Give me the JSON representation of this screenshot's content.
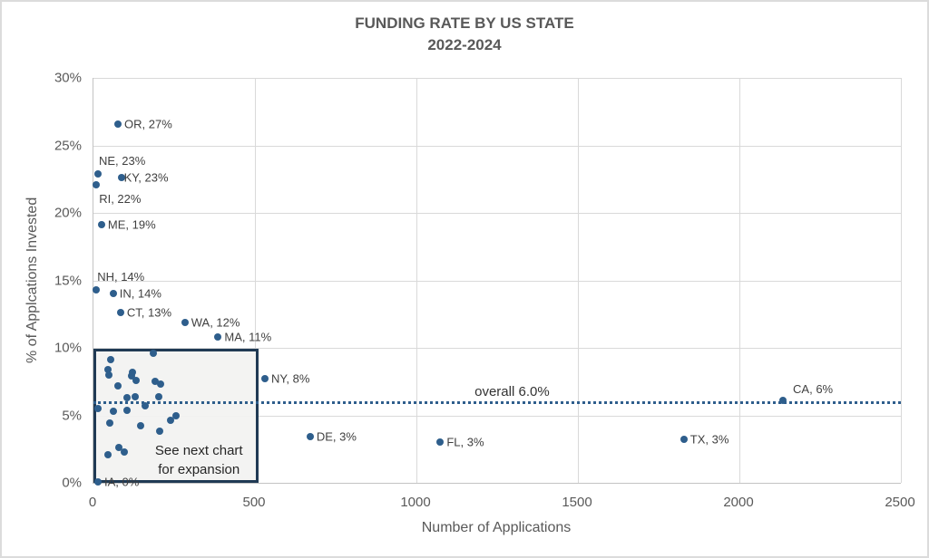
{
  "title": {
    "line1": "FUNDING RATE BY US STATE",
    "line2": "2022-2024"
  },
  "chart_data": {
    "type": "scatter",
    "title": "FUNDING RATE BY US STATE 2022-2024",
    "xlabel": "Number of Applications",
    "ylabel": "% of Applcations Invested",
    "xlim": [
      0,
      2500
    ],
    "ylim": [
      0,
      30
    ],
    "x_tick_step": 500,
    "y_tick_step": 5,
    "grid": true,
    "points": [
      {
        "state": "OR",
        "x": 76,
        "y": 26.6,
        "label": "OR, 27%",
        "side": "right"
      },
      {
        "state": "NE",
        "x": 14,
        "y": 22.9,
        "label": "NE, 23%",
        "side": "above"
      },
      {
        "state": "KY",
        "x": 86,
        "y": 22.6,
        "label": "KY, 23%",
        "side": "right-tight"
      },
      {
        "state": "RI",
        "x": 9,
        "y": 22.1,
        "label": "RI, 22%",
        "side": "below"
      },
      {
        "state": "ME",
        "x": 25,
        "y": 19.1,
        "label": "ME, 19%",
        "side": "right"
      },
      {
        "state": "NH",
        "x": 9,
        "y": 14.3,
        "label": "NH, 14%",
        "side": "above"
      },
      {
        "state": "IN",
        "x": 61,
        "y": 14.0,
        "label": "IN, 14%",
        "side": "right"
      },
      {
        "state": "CT",
        "x": 84,
        "y": 12.6,
        "label": "CT, 13%",
        "side": "right"
      },
      {
        "state": "WA",
        "x": 283,
        "y": 11.9,
        "label": "WA, 12%",
        "side": "right"
      },
      {
        "state": "MA",
        "x": 386,
        "y": 10.8,
        "label": "MA, 11%",
        "side": "right"
      },
      {
        "state": "NY",
        "x": 531,
        "y": 7.7,
        "label": "NY, 8%",
        "side": "right"
      },
      {
        "state": "CA",
        "x": 2135,
        "y": 6.1,
        "label": "CA, 6%",
        "side": "above-right"
      },
      {
        "state": "DE",
        "x": 671,
        "y": 3.4,
        "label": "DE, 3%",
        "side": "right"
      },
      {
        "state": "FL",
        "x": 1074,
        "y": 3.0,
        "label": "FL, 3%",
        "side": "right"
      },
      {
        "state": "TX",
        "x": 1828,
        "y": 3.2,
        "label": "TX, 3%",
        "side": "right"
      },
      {
        "state": "IA",
        "x": 14,
        "y": 0.1,
        "label": "IA, 0%",
        "side": "right"
      }
    ],
    "cluster_points": [
      [
        53,
        9.1
      ],
      [
        185,
        9.6
      ],
      [
        45,
        8.4
      ],
      [
        47,
        8.0
      ],
      [
        122,
        8.2
      ],
      [
        117,
        7.9
      ],
      [
        131,
        7.6
      ],
      [
        75,
        7.2
      ],
      [
        190,
        7.5
      ],
      [
        208,
        7.3
      ],
      [
        103,
        6.3
      ],
      [
        128,
        6.4
      ],
      [
        203,
        6.4
      ],
      [
        14,
        5.5
      ],
      [
        61,
        5.3
      ],
      [
        103,
        5.4
      ],
      [
        159,
        5.7
      ],
      [
        257,
        5.0
      ],
      [
        239,
        4.6
      ],
      [
        50,
        4.4
      ],
      [
        145,
        4.2
      ],
      [
        206,
        3.8
      ],
      [
        79,
        2.6
      ],
      [
        96,
        2.3
      ],
      [
        44,
        2.1
      ]
    ],
    "reference_line": {
      "y": 6.0,
      "label": "overall 6.0%",
      "label_anchor_x": 1412,
      "style": "dotted"
    },
    "annotation_box": {
      "x0": 0,
      "x1": 510,
      "y0": 0,
      "y1": 9.9,
      "lines": [
        "See next chart",
        "for expansion"
      ]
    },
    "legend": "none",
    "colors": {
      "dot": "#2e5e8c",
      "reference_line": "#2e5e8c",
      "box_border": "#203a54",
      "box_fill": "rgba(242,242,241,0.93)",
      "gridline": "#d9d9d9",
      "axis_text": "#595959",
      "point_label_text": "#3f3f3f"
    }
  }
}
